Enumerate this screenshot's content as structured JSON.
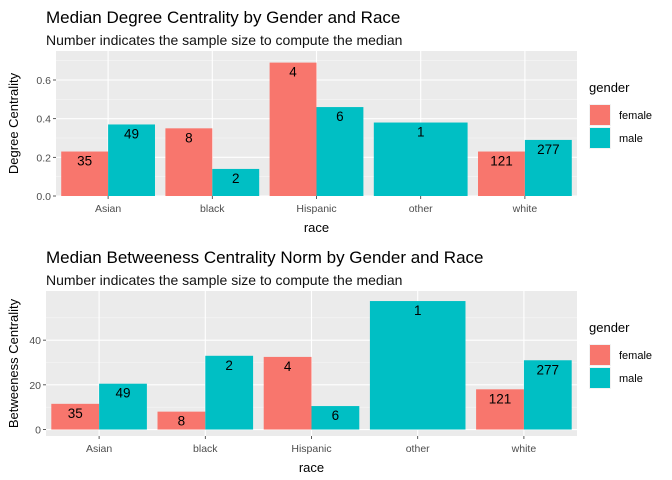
{
  "chart_data": [
    {
      "type": "bar",
      "title": "Median Degree Centrality by Gender and Race",
      "subtitle": "Number indicates the sample size to compute the median",
      "xlabel": "race",
      "ylabel": "Degree Centrality",
      "categories": [
        "Asian",
        "black",
        "Hispanic",
        "other",
        "white"
      ],
      "ylim": [
        0,
        0.75
      ],
      "yticks": [
        0.0,
        0.2,
        0.4,
        0.6
      ],
      "ytick_labels": [
        "0.0",
        "0.2",
        "0.4",
        "0.6"
      ],
      "grid": true,
      "legend": {
        "title": "gender",
        "position": "right"
      },
      "series": [
        {
          "name": "female",
          "color": "#F8766D",
          "values": [
            0.23,
            0.35,
            0.69,
            null,
            0.23
          ],
          "labels": [
            "35",
            "8",
            "4",
            "",
            "121"
          ]
        },
        {
          "name": "male",
          "color": "#00BFC4",
          "values": [
            0.37,
            0.14,
            0.46,
            0.38,
            0.29
          ],
          "labels": [
            "49",
            "2",
            "6",
            "1",
            "277"
          ]
        }
      ]
    },
    {
      "type": "bar",
      "title": "Median Betweeness Centrality Norm by Gender and Race",
      "subtitle": "Number indicates the sample size to compute the median",
      "xlabel": "race",
      "ylabel": "Betweeness Centrality",
      "categories": [
        "Asian",
        "black",
        "Hispanic",
        "other",
        "white"
      ],
      "ylim": [
        -2.9,
        62
      ],
      "yticks": [
        0,
        20,
        40
      ],
      "ytick_labels": [
        "0",
        "20",
        "40"
      ],
      "grid": true,
      "legend": {
        "title": "gender",
        "position": "right"
      },
      "series": [
        {
          "name": "female",
          "color": "#F8766D",
          "values": [
            11.5,
            8,
            32.5,
            null,
            18
          ],
          "labels": [
            "35",
            "8",
            "4",
            "",
            "121"
          ]
        },
        {
          "name": "male",
          "color": "#00BFC4",
          "values": [
            20.5,
            33,
            10.5,
            57.5,
            31
          ],
          "labels": [
            "49",
            "2",
            "6",
            "1",
            "277"
          ]
        }
      ]
    }
  ]
}
